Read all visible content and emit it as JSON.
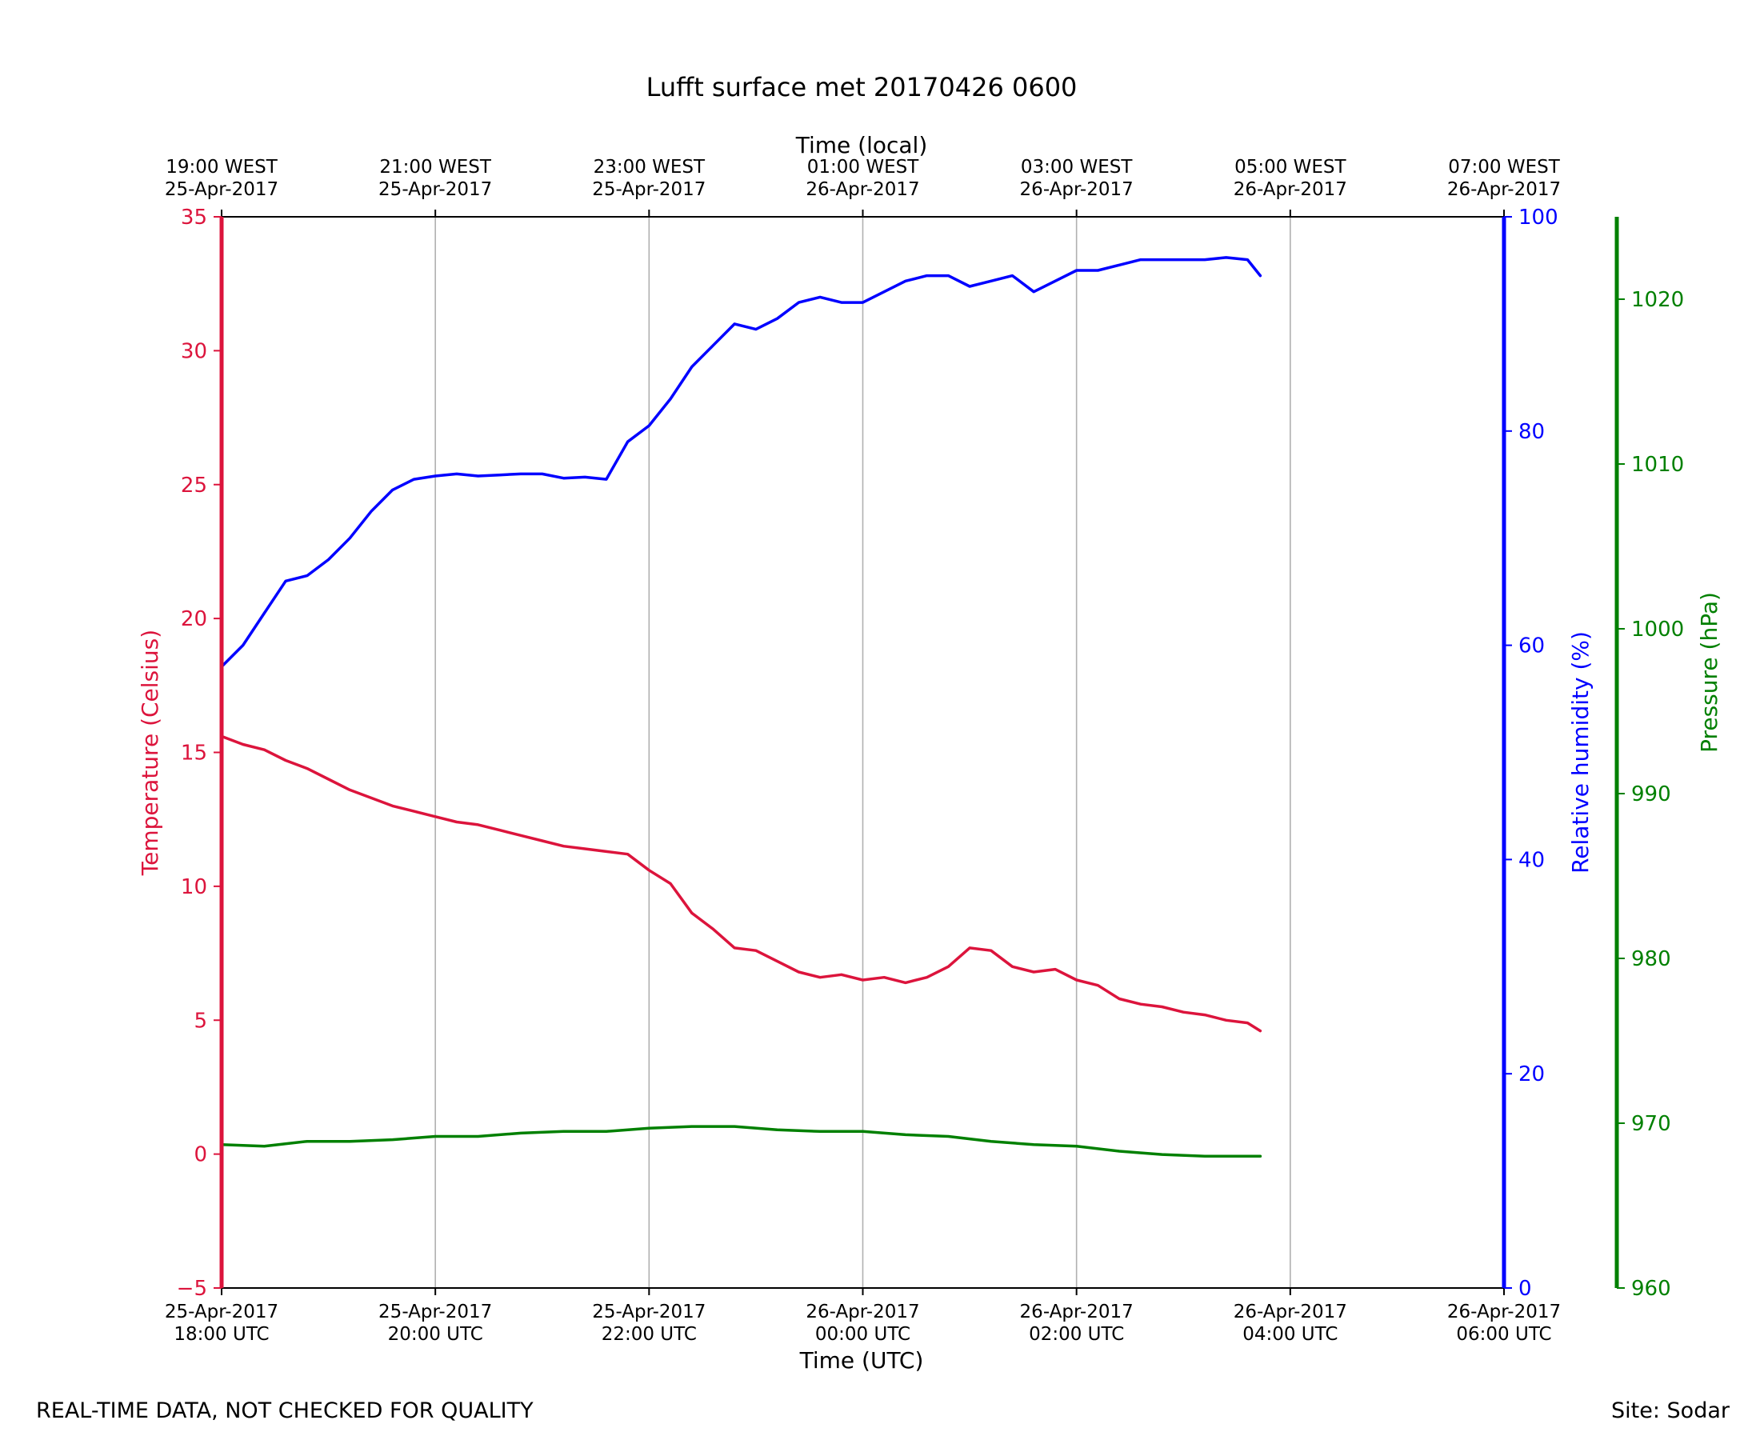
{
  "chart_data": {
    "type": "line",
    "title": "Lufft surface met 20170426 0600",
    "xlabel": "Time (UTC)",
    "x2label": "Time (local)",
    "footer_left": "REAL-TIME DATA, NOT CHECKED FOR QUALITY",
    "footer_right": "Site: Sodar",
    "xlim": [
      -1,
      11
    ],
    "x_ticks": [
      {
        "value": -1,
        "line1": "25-Apr-2017",
        "line2": "18:00 UTC"
      },
      {
        "value": 1,
        "line1": "25-Apr-2017",
        "line2": "20:00 UTC"
      },
      {
        "value": 3,
        "line1": "25-Apr-2017",
        "line2": "22:00 UTC"
      },
      {
        "value": 5,
        "line1": "26-Apr-2017",
        "line2": "00:00 UTC"
      },
      {
        "value": 7,
        "line1": "26-Apr-2017",
        "line2": "02:00 UTC"
      },
      {
        "value": 9,
        "line1": "26-Apr-2017",
        "line2": "04:00 UTC"
      },
      {
        "value": 11,
        "line1": "26-Apr-2017",
        "line2": "06:00 UTC"
      }
    ],
    "x2_ticks": [
      {
        "value": -1,
        "line1": "19:00 WEST",
        "line2": "25-Apr-2017"
      },
      {
        "value": 1,
        "line1": "21:00 WEST",
        "line2": "25-Apr-2017"
      },
      {
        "value": 3,
        "line1": "23:00 WEST",
        "line2": "25-Apr-2017"
      },
      {
        "value": 5,
        "line1": "01:00 WEST",
        "line2": "26-Apr-2017"
      },
      {
        "value": 7,
        "line1": "03:00 WEST",
        "line2": "26-Apr-2017"
      },
      {
        "value": 9,
        "line1": "05:00 WEST",
        "line2": "26-Apr-2017"
      },
      {
        "value": 11,
        "line1": "07:00 WEST",
        "line2": "26-Apr-2017"
      }
    ],
    "grid": "vertical",
    "axes": {
      "temperature": {
        "label": "Temperature (Celsius)",
        "ylim": [
          -5,
          35
        ],
        "ticks": [
          "−5",
          "0",
          "5",
          "10",
          "15",
          "20",
          "25",
          "30",
          "35"
        ],
        "tick_values": [
          -5,
          0,
          5,
          10,
          15,
          20,
          25,
          30,
          35
        ],
        "color": "#dc143c",
        "side": "left"
      },
      "humidity": {
        "label": "Relative humidity (%)",
        "ylim": [
          0,
          100
        ],
        "ticks": [
          "0",
          "20",
          "40",
          "60",
          "80",
          "100"
        ],
        "tick_values": [
          0,
          20,
          40,
          60,
          80,
          100
        ],
        "color": "#0000ff",
        "side": "right"
      },
      "pressure": {
        "label": "Pressure (hPa)",
        "ylim": [
          960,
          1025
        ],
        "ticks": [
          "960",
          "970",
          "980",
          "990",
          "1000",
          "1010",
          "1020"
        ],
        "tick_values": [
          960,
          970,
          980,
          990,
          1000,
          1010,
          1020
        ],
        "color": "#008000",
        "side": "right-offset"
      }
    },
    "series": [
      {
        "axis": "temperature",
        "color": "#dc143c",
        "x": [
          -1.0,
          -0.8,
          -0.6,
          -0.4,
          -0.2,
          0.0,
          0.2,
          0.4,
          0.6,
          0.8,
          1.0,
          1.2,
          1.4,
          1.6,
          1.8,
          2.0,
          2.2,
          2.4,
          2.6,
          2.8,
          3.0,
          3.2,
          3.4,
          3.6,
          3.8,
          4.0,
          4.2,
          4.4,
          4.6,
          4.8,
          5.0,
          5.2,
          5.4,
          5.6,
          5.8,
          6.0,
          6.2,
          6.4,
          6.6,
          6.8,
          7.0,
          7.2,
          7.4,
          7.6,
          7.8,
          8.0,
          8.2,
          8.4,
          8.6,
          8.72
        ],
        "values": [
          15.6,
          15.3,
          15.1,
          14.7,
          14.4,
          14.0,
          13.6,
          13.3,
          13.0,
          12.8,
          12.6,
          12.4,
          12.3,
          12.1,
          11.9,
          11.7,
          11.5,
          11.4,
          11.3,
          11.2,
          10.6,
          10.1,
          9.0,
          8.4,
          7.7,
          7.6,
          7.2,
          6.8,
          6.6,
          6.7,
          6.5,
          6.6,
          6.4,
          6.6,
          7.0,
          7.7,
          7.6,
          7.0,
          6.8,
          6.9,
          6.5,
          6.3,
          5.8,
          5.6,
          5.5,
          5.3,
          5.2,
          5.0,
          4.9,
          4.6
        ]
      },
      {
        "axis": "humidity",
        "color": "#0000ff",
        "x": [
          -1.0,
          -0.8,
          -0.6,
          -0.4,
          -0.2,
          0.0,
          0.2,
          0.4,
          0.6,
          0.8,
          1.0,
          1.2,
          1.4,
          1.6,
          1.8,
          2.0,
          2.2,
          2.4,
          2.6,
          2.8,
          3.0,
          3.2,
          3.4,
          3.6,
          3.8,
          4.0,
          4.2,
          4.4,
          4.6,
          4.8,
          5.0,
          5.2,
          5.4,
          5.6,
          5.8,
          6.0,
          6.2,
          6.4,
          6.6,
          6.8,
          7.0,
          7.2,
          7.4,
          7.6,
          7.8,
          8.0,
          8.2,
          8.4,
          8.6,
          8.72
        ],
        "values": [
          58,
          60,
          63,
          66,
          66.5,
          68,
          70,
          72.5,
          74.5,
          75.5,
          75.8,
          76,
          75.8,
          75.9,
          76,
          76,
          75.6,
          75.7,
          75.5,
          79,
          80.5,
          83,
          86,
          88,
          90,
          89.5,
          90.5,
          92,
          92.5,
          92,
          92,
          93,
          94,
          94.5,
          94.5,
          93.5,
          94,
          94.5,
          93,
          94,
          95,
          95,
          95.5,
          96,
          96,
          96,
          96,
          96.2,
          96,
          94.5
        ]
      },
      {
        "axis": "pressure",
        "color": "#008000",
        "x": [
          -1.0,
          -0.6,
          -0.2,
          0.2,
          0.6,
          1.0,
          1.4,
          1.8,
          2.2,
          2.6,
          3.0,
          3.4,
          3.8,
          4.2,
          4.6,
          5.0,
          5.4,
          5.8,
          6.2,
          6.6,
          7.0,
          7.4,
          7.8,
          8.2,
          8.6,
          8.72
        ],
        "values": [
          968.7,
          968.6,
          968.9,
          968.9,
          969.0,
          969.2,
          969.2,
          969.4,
          969.5,
          969.5,
          969.7,
          969.8,
          969.8,
          969.6,
          969.5,
          969.5,
          969.3,
          969.2,
          968.9,
          968.7,
          968.6,
          968.3,
          968.1,
          968.0,
          968.0,
          968.0
        ]
      }
    ]
  }
}
